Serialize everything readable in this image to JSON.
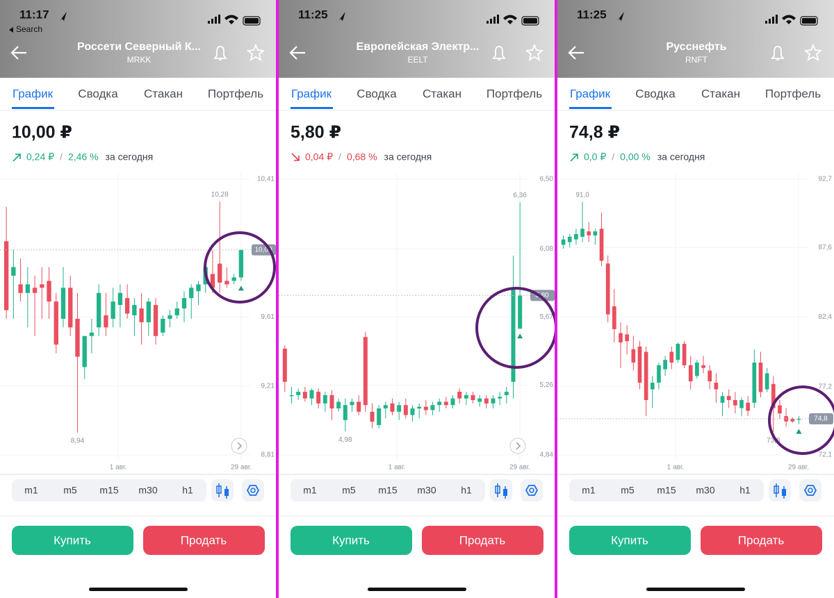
{
  "screens": [
    {
      "status": {
        "time": "11:17",
        "back": "Search"
      },
      "header": {
        "title": "Россети Северный К...",
        "ticker": "MRKK"
      },
      "tabs": [
        "График",
        "Сводка",
        "Стакан",
        "Портфель"
      ],
      "price": "10,00 ₽",
      "change": {
        "direction": "up",
        "color": "#1fa97f",
        "value": "0,24 ₽",
        "separator": "/",
        "percent": "2,46 %",
        "period": "за сегодня"
      },
      "chart": {
        "type": "candlestick",
        "ylim": [
          8.81,
          10.41
        ],
        "yticks": [
          {
            "value": 10.41,
            "label": "10,41"
          },
          {
            "value": 9.61,
            "label": "9,61"
          },
          {
            "value": 9.21,
            "label": "9,21"
          },
          {
            "value": 8.81,
            "label": "8,81"
          }
        ],
        "current": {
          "value": 10.0,
          "label": "10,00"
        },
        "high": {
          "value": 10.28,
          "label": "10,28"
        },
        "low": {
          "value": 8.94,
          "label": "8,94"
        },
        "x_labels": [
          "1 авг.",
          "29 авг."
        ],
        "candles": [
          [
            10.05,
            10.25,
            9.6,
            9.65
          ],
          [
            9.85,
            10.0,
            9.6,
            9.9
          ],
          [
            9.8,
            9.95,
            9.7,
            9.75
          ],
          [
            9.75,
            9.9,
            9.55,
            9.8
          ],
          [
            9.78,
            9.85,
            9.5,
            9.75
          ],
          [
            9.8,
            9.9,
            9.6,
            9.78
          ],
          [
            9.82,
            9.9,
            9.6,
            9.7
          ],
          [
            9.7,
            9.75,
            9.4,
            9.45
          ],
          [
            9.6,
            9.9,
            9.55,
            9.78
          ],
          [
            9.78,
            9.85,
            9.5,
            9.55
          ],
          [
            9.6,
            9.75,
            8.94,
            9.38
          ],
          [
            9.32,
            9.5,
            9.25,
            9.5
          ],
          [
            9.5,
            9.6,
            9.4,
            9.52
          ],
          [
            9.55,
            9.8,
            9.5,
            9.75
          ],
          [
            9.62,
            9.75,
            9.5,
            9.55
          ],
          [
            9.6,
            9.78,
            9.55,
            9.7
          ],
          [
            9.68,
            9.8,
            9.55,
            9.75
          ],
          [
            9.72,
            9.8,
            9.6,
            9.63
          ],
          [
            9.62,
            9.72,
            9.5,
            9.68
          ],
          [
            9.66,
            9.75,
            9.45,
            9.58
          ],
          [
            9.58,
            9.72,
            9.5,
            9.7
          ],
          [
            9.68,
            9.72,
            9.45,
            9.5
          ],
          [
            9.52,
            9.62,
            9.5,
            9.6
          ],
          [
            9.6,
            9.65,
            9.55,
            9.62
          ],
          [
            9.62,
            9.7,
            9.6,
            9.66
          ],
          [
            9.66,
            9.76,
            9.58,
            9.72
          ],
          [
            9.72,
            9.8,
            9.6,
            9.78
          ],
          [
            9.76,
            9.82,
            9.68,
            9.8
          ],
          [
            9.8,
            9.95,
            9.75,
            9.9
          ],
          [
            9.86,
            10.0,
            9.75,
            9.78
          ],
          [
            9.92,
            10.28,
            9.75,
            9.81
          ],
          [
            9.82,
            9.9,
            9.78,
            9.8
          ],
          [
            9.82,
            9.86,
            9.8,
            9.84
          ],
          [
            9.84,
            10.0,
            9.82,
            10.0
          ]
        ]
      },
      "timeframes": [
        "m1",
        "m5",
        "m15",
        "m30",
        "h1"
      ],
      "buttons": {
        "buy": "Купить",
        "sell": "Продать"
      }
    },
    {
      "status": {
        "time": "11:25"
      },
      "header": {
        "title": "Европейская Электр...",
        "ticker": "EELT"
      },
      "tabs": [
        "График",
        "Сводка",
        "Стакан",
        "Портфель"
      ],
      "price": "5,80 ₽",
      "change": {
        "direction": "down",
        "color": "#e0404f",
        "value": "0,04 ₽",
        "separator": "/",
        "percent": "0,68 %",
        "period": "за сегодня"
      },
      "chart": {
        "type": "candlestick",
        "ylim": [
          4.84,
          6.5
        ],
        "yticks": [
          {
            "value": 6.5,
            "label": "6,50"
          },
          {
            "value": 6.08,
            "label": "6,08"
          },
          {
            "value": 5.67,
            "label": "5,67"
          },
          {
            "value": 5.26,
            "label": "5,26"
          },
          {
            "value": 4.84,
            "label": "4,84"
          }
        ],
        "current": {
          "value": 5.8,
          "label": "5,80"
        },
        "high": {
          "value": 6.36,
          "label": "6,36"
        },
        "low": {
          "value": 4.98,
          "label": "4,98"
        },
        "x_labels": [
          "1 авг.",
          "29 авг."
        ],
        "candles": [
          [
            5.48,
            5.5,
            5.22,
            5.28
          ],
          [
            5.2,
            5.25,
            5.15,
            5.2
          ],
          [
            5.2,
            5.24,
            5.17,
            5.22
          ],
          [
            5.22,
            5.25,
            5.16,
            5.18
          ],
          [
            5.18,
            5.24,
            5.14,
            5.23
          ],
          [
            5.22,
            5.24,
            5.12,
            5.15
          ],
          [
            5.15,
            5.22,
            5.1,
            5.2
          ],
          [
            5.2,
            5.23,
            5.05,
            5.12
          ],
          [
            5.12,
            5.18,
            5.1,
            5.16
          ],
          [
            5.05,
            5.18,
            4.98,
            5.14
          ],
          [
            5.14,
            5.18,
            5.1,
            5.16
          ],
          [
            5.16,
            5.2,
            5.08,
            5.1
          ],
          [
            5.55,
            5.58,
            5.1,
            5.14
          ],
          [
            5.1,
            5.15,
            5.0,
            5.04
          ],
          [
            5.02,
            5.14,
            5.0,
            5.12
          ],
          [
            5.12,
            5.16,
            5.06,
            5.14
          ],
          [
            5.15,
            5.18,
            5.08,
            5.1
          ],
          [
            5.1,
            5.16,
            5.05,
            5.14
          ],
          [
            5.14,
            5.18,
            5.06,
            5.08
          ],
          [
            5.08,
            5.14,
            5.04,
            5.12
          ],
          [
            5.12,
            5.15,
            5.06,
            5.13
          ],
          [
            5.13,
            5.17,
            5.08,
            5.11
          ],
          [
            5.11,
            5.16,
            5.08,
            5.14
          ],
          [
            5.14,
            5.18,
            5.1,
            5.16
          ],
          [
            5.16,
            5.19,
            5.12,
            5.14
          ],
          [
            5.14,
            5.2,
            5.12,
            5.18
          ],
          [
            5.22,
            5.24,
            5.15,
            5.18
          ],
          [
            5.18,
            5.22,
            5.14,
            5.2
          ],
          [
            5.2,
            5.22,
            5.15,
            5.17
          ],
          [
            5.16,
            5.2,
            5.13,
            5.18
          ],
          [
            5.18,
            5.2,
            5.12,
            5.15
          ],
          [
            5.15,
            5.2,
            5.12,
            5.18
          ],
          [
            5.18,
            5.22,
            5.14,
            5.19
          ],
          [
            5.2,
            5.25,
            5.15,
            5.22
          ],
          [
            5.28,
            6.04,
            5.18,
            5.85
          ],
          [
            5.6,
            6.36,
            5.6,
            5.8
          ]
        ]
      },
      "timeframes": [
        "m1",
        "m5",
        "m15",
        "m30",
        "h1"
      ],
      "buttons": {
        "buy": "Купить",
        "sell": "Продать"
      }
    },
    {
      "status": {
        "time": "11:25"
      },
      "header": {
        "title": "Русснефть",
        "ticker": "RNFT"
      },
      "tabs": [
        "График",
        "Сводка",
        "Стакан",
        "Портфель"
      ],
      "price": "74,8 ₽",
      "change": {
        "direction": "up",
        "color": "#1fa97f",
        "value": "0,0 ₽",
        "separator": "/",
        "percent": "0,00 %",
        "period": "за сегодня"
      },
      "chart": {
        "type": "candlestick",
        "ylim": [
          72.1,
          92.7
        ],
        "yticks": [
          {
            "value": 92.7,
            "label": "92,7"
          },
          {
            "value": 87.6,
            "label": "87,6"
          },
          {
            "value": 82.4,
            "label": "82,4"
          },
          {
            "value": 77.2,
            "label": "77,2"
          },
          {
            "value": 72.1,
            "label": "72,1"
          }
        ],
        "current": {
          "value": 74.8,
          "label": "74,8"
        },
        "high": {
          "value": 91.0,
          "label": "91,0"
        },
        "low": {
          "value": 73.8,
          "label": "73,8"
        },
        "x_labels": [
          "1 авг.",
          "29 авг."
        ],
        "candles": [
          [
            87.8,
            88.5,
            87.5,
            88.2
          ],
          [
            88.0,
            88.6,
            87.6,
            88.4
          ],
          [
            88.2,
            89.0,
            87.8,
            88.6
          ],
          [
            88.4,
            91.0,
            88.0,
            89.0
          ],
          [
            88.8,
            89.5,
            88.0,
            88.5
          ],
          [
            88.5,
            89.0,
            87.8,
            88.8
          ],
          [
            89.0,
            90.2,
            86.2,
            86.6
          ],
          [
            86.4,
            87.0,
            82.0,
            82.6
          ],
          [
            83.2,
            84.5,
            80.5,
            81.5
          ],
          [
            81.2,
            82.0,
            78.6,
            80.5
          ],
          [
            81.1,
            81.8,
            79.6,
            80.6
          ],
          [
            80.0,
            81.0,
            78.4,
            79.0
          ],
          [
            80.2,
            80.6,
            77.0,
            77.5
          ],
          [
            79.8,
            80.2,
            75.0,
            76.2
          ],
          [
            77.0,
            78.0,
            75.6,
            77.5
          ],
          [
            77.5,
            79.0,
            77.0,
            78.8
          ],
          [
            78.5,
            79.5,
            78.0,
            79.2
          ],
          [
            79.8,
            80.2,
            78.5,
            79.0
          ],
          [
            79.2,
            80.5,
            79.0,
            80.4
          ],
          [
            80.4,
            80.6,
            78.6,
            78.8
          ],
          [
            78.8,
            79.5,
            77.0,
            77.6
          ],
          [
            78.0,
            79.2,
            77.8,
            79.0
          ],
          [
            78.8,
            79.5,
            78.2,
            78.6
          ],
          [
            78.4,
            78.8,
            77.0,
            77.6
          ],
          [
            77.5,
            78.2,
            76.0,
            77.0
          ],
          [
            76.0,
            76.8,
            75.0,
            76.5
          ],
          [
            76.5,
            77.0,
            75.6,
            76.2
          ],
          [
            76.2,
            76.8,
            75.2,
            75.8
          ],
          [
            75.6,
            76.4,
            75.0,
            76.2
          ],
          [
            76.0,
            76.5,
            75.0,
            75.4
          ],
          [
            76.0,
            80.0,
            75.6,
            79.0
          ],
          [
            79.0,
            79.8,
            76.4,
            76.8
          ],
          [
            77.0,
            78.6,
            76.8,
            78.2
          ],
          [
            77.4,
            78.0,
            73.8,
            75.6
          ],
          [
            75.8,
            76.2,
            74.8,
            75.2
          ],
          [
            75.0,
            75.6,
            74.2,
            74.6
          ],
          [
            74.8,
            74.9,
            74.5,
            74.6
          ],
          [
            74.8,
            75.0,
            74.4,
            74.8
          ]
        ]
      },
      "timeframes": [
        "m1",
        "m5",
        "m15",
        "m30",
        "h1"
      ],
      "buttons": {
        "buy": "Купить",
        "sell": "Продать"
      }
    }
  ]
}
